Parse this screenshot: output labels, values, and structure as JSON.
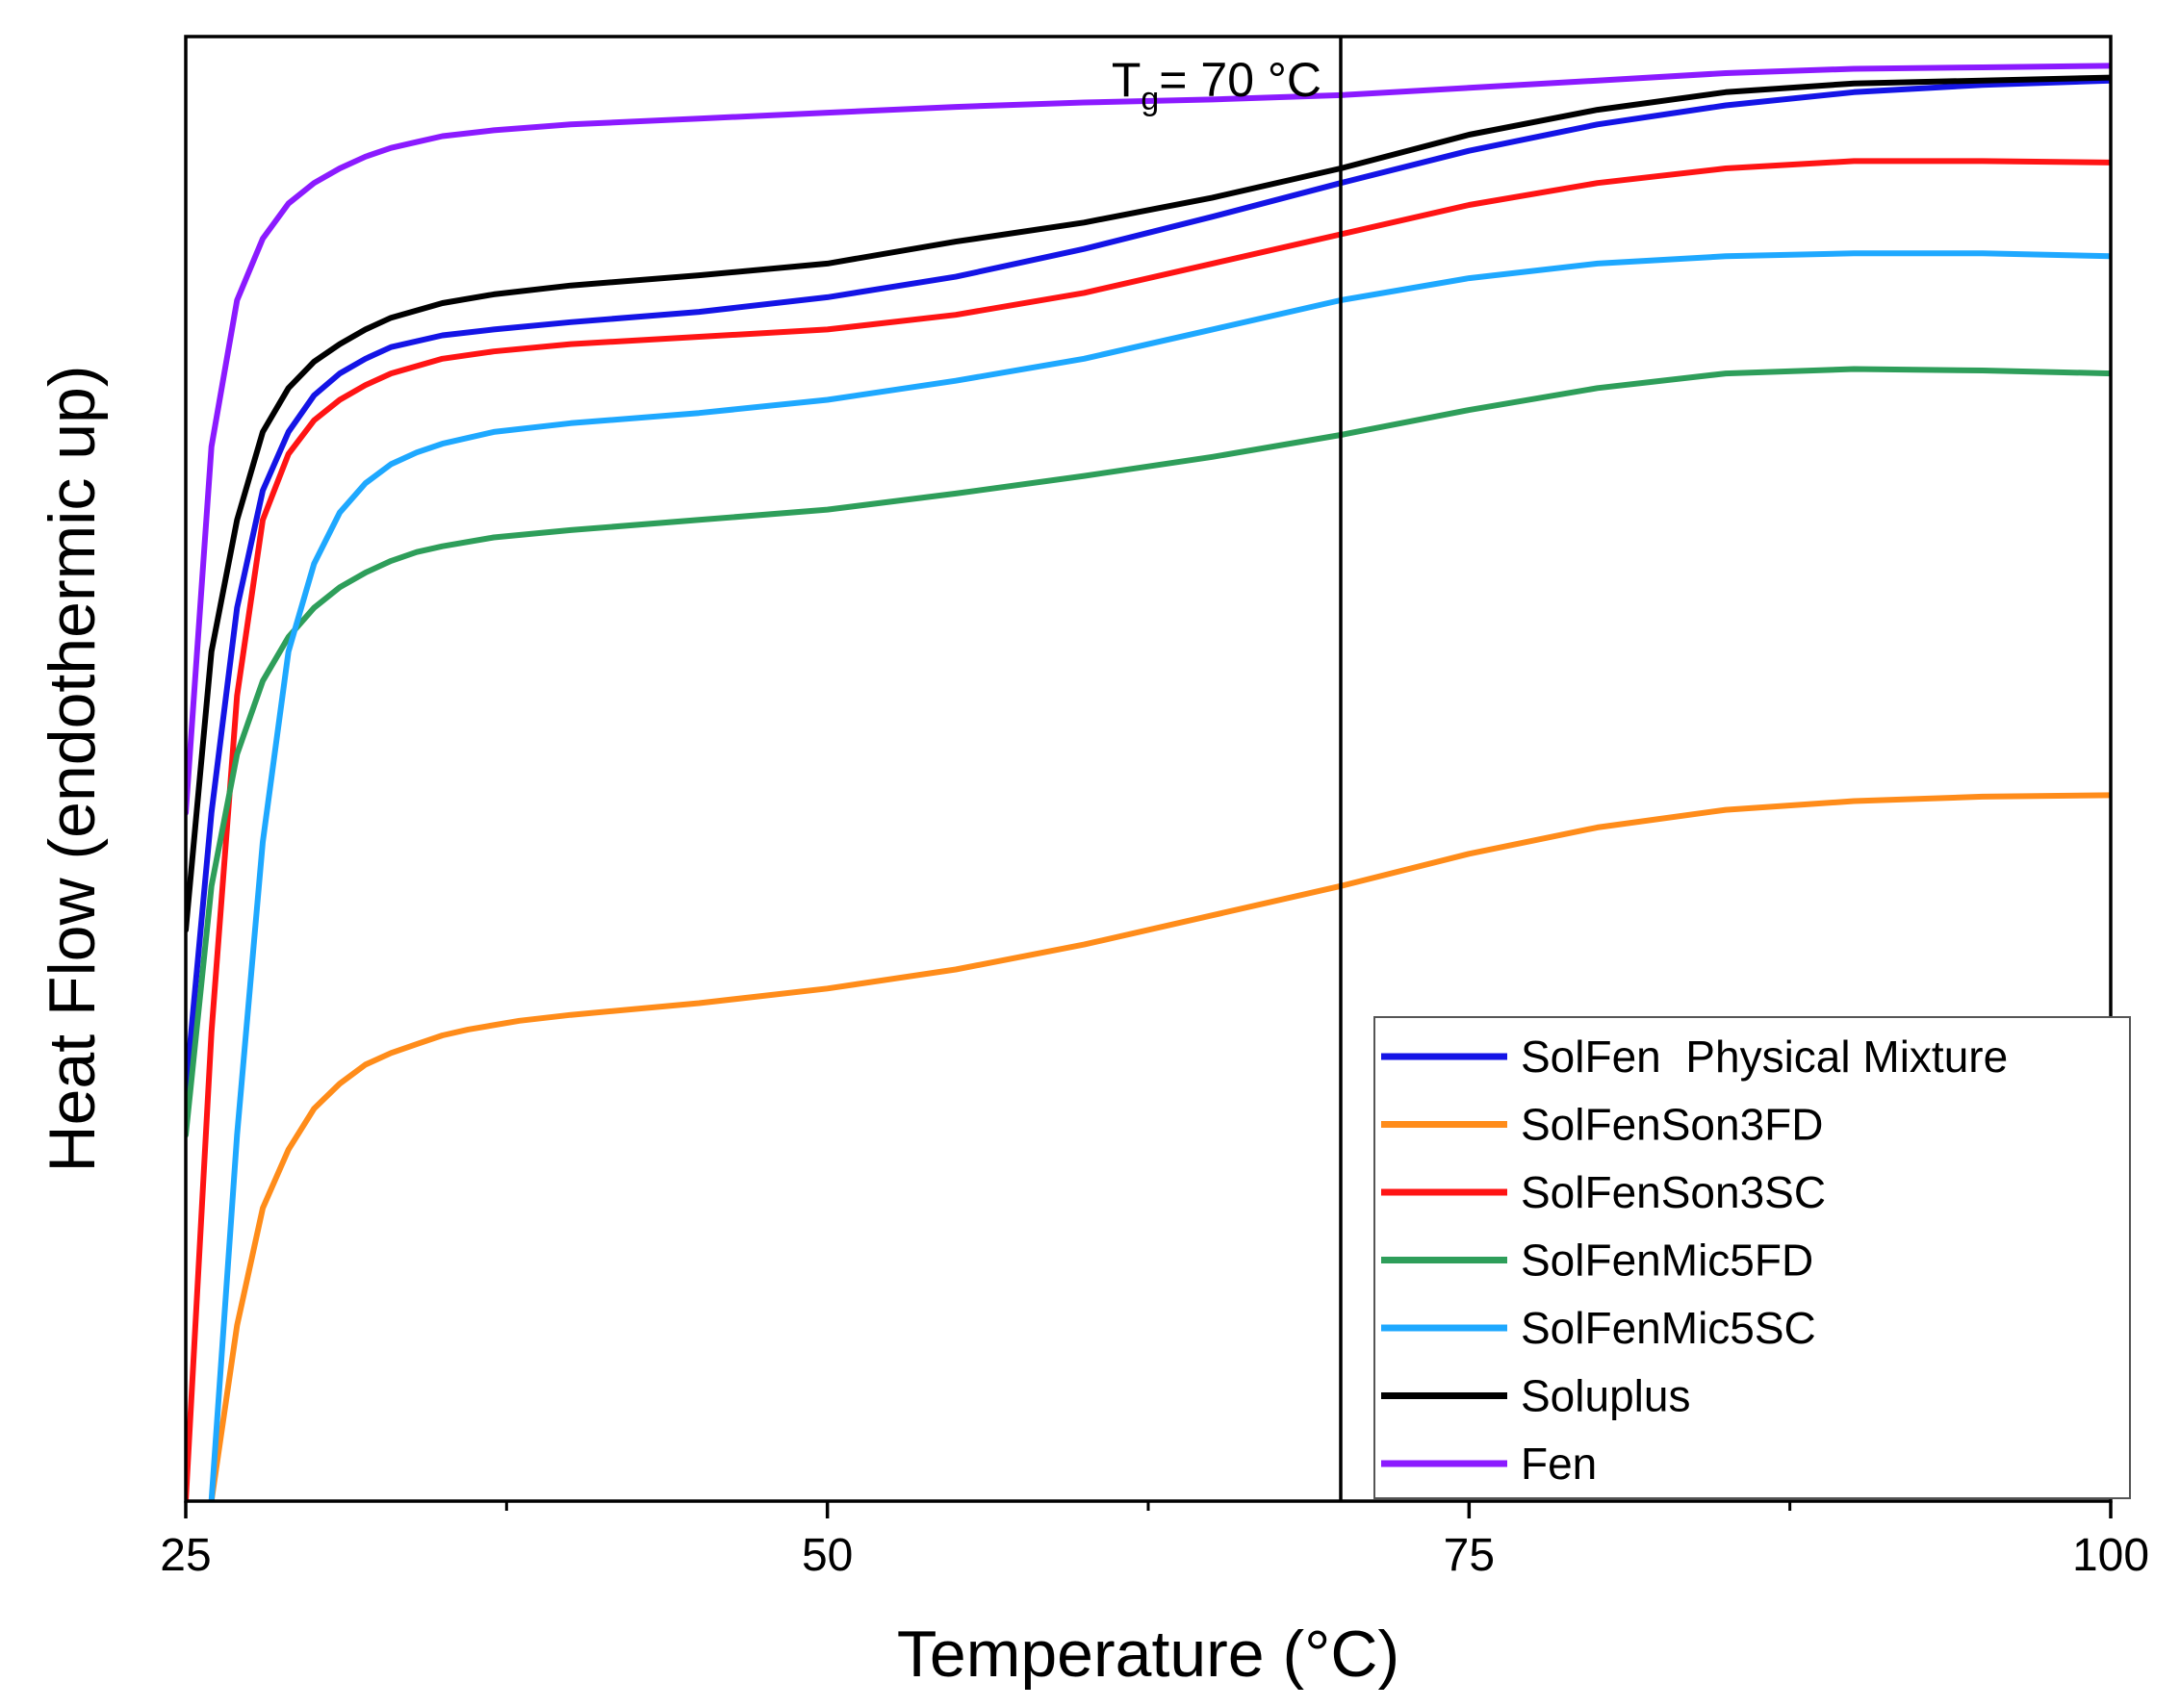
{
  "chart_data": {
    "type": "line",
    "title": "",
    "xlabel": "Temperature (°C)",
    "ylabel": "Heat Flow (endothermic up)",
    "xlim": [
      25,
      100
    ],
    "ylim": [
      0,
      1
    ],
    "xticks": [
      25,
      50,
      75,
      100
    ],
    "x_minor_ticks": [
      37.5,
      62.5,
      87.5
    ],
    "yticks": [],
    "grid": false,
    "legend_position": "bottom-right",
    "annotation": {
      "x": 70,
      "label_main": "T",
      "label_sub": "g",
      "label_rest": "= 70 °C"
    },
    "series": [
      {
        "name": "SolFen  Physical Mixture",
        "color": "#1414e6",
        "x": [
          25,
          26,
          27,
          28,
          29,
          30,
          31,
          32,
          33,
          35,
          37,
          40,
          45,
          50,
          55,
          60,
          65,
          70,
          75,
          80,
          85,
          90,
          95,
          100
        ],
        "y": [
          0.28,
          0.47,
          0.61,
          0.69,
          0.73,
          0.755,
          0.77,
          0.78,
          0.788,
          0.796,
          0.8,
          0.805,
          0.812,
          0.822,
          0.836,
          0.855,
          0.877,
          0.9,
          0.922,
          0.94,
          0.953,
          0.962,
          0.967,
          0.97
        ]
      },
      {
        "name": "SolFenSon3FD",
        "color": "#ff8c1a",
        "x": [
          26,
          27,
          28,
          29,
          30,
          31,
          32,
          33,
          34,
          35,
          36,
          38,
          40,
          45,
          50,
          55,
          60,
          65,
          70,
          75,
          80,
          85,
          90,
          95,
          100
        ],
        "y": [
          0.0,
          0.12,
          0.2,
          0.24,
          0.268,
          0.285,
          0.298,
          0.306,
          0.312,
          0.318,
          0.322,
          0.328,
          0.332,
          0.34,
          0.35,
          0.363,
          0.38,
          0.4,
          0.42,
          0.442,
          0.46,
          0.472,
          0.478,
          0.481,
          0.482
        ]
      },
      {
        "name": "SolFenSon3SC",
        "color": "#ff1414",
        "x": [
          25,
          26,
          27,
          28,
          29,
          30,
          31,
          32,
          33,
          35,
          37,
          40,
          45,
          50,
          55,
          60,
          65,
          70,
          75,
          80,
          85,
          90,
          95,
          100
        ],
        "y": [
          0.0,
          0.32,
          0.55,
          0.67,
          0.715,
          0.738,
          0.752,
          0.762,
          0.77,
          0.78,
          0.785,
          0.79,
          0.795,
          0.8,
          0.81,
          0.825,
          0.845,
          0.865,
          0.885,
          0.9,
          0.91,
          0.915,
          0.915,
          0.914
        ]
      },
      {
        "name": "SolFenMic5FD",
        "color": "#2e9e5a",
        "x": [
          25,
          26,
          27,
          28,
          29,
          30,
          31,
          32,
          33,
          34,
          35,
          37,
          40,
          45,
          50,
          55,
          60,
          65,
          70,
          75,
          80,
          85,
          90,
          95,
          100
        ],
        "y": [
          0.25,
          0.42,
          0.51,
          0.56,
          0.59,
          0.61,
          0.624,
          0.634,
          0.642,
          0.648,
          0.652,
          0.658,
          0.663,
          0.67,
          0.677,
          0.688,
          0.7,
          0.713,
          0.728,
          0.745,
          0.76,
          0.77,
          0.773,
          0.772,
          0.77
        ]
      },
      {
        "name": "SolFenMic5SC",
        "color": "#1ea8ff",
        "x": [
          26,
          27,
          28,
          29,
          30,
          31,
          32,
          33,
          34,
          35,
          37,
          40,
          45,
          50,
          55,
          60,
          65,
          70,
          75,
          80,
          85,
          90,
          95,
          100
        ],
        "y": [
          0.0,
          0.25,
          0.45,
          0.58,
          0.64,
          0.675,
          0.695,
          0.708,
          0.716,
          0.722,
          0.73,
          0.736,
          0.743,
          0.752,
          0.765,
          0.78,
          0.8,
          0.82,
          0.835,
          0.845,
          0.85,
          0.852,
          0.852,
          0.85
        ]
      },
      {
        "name": "Soluplus",
        "color": "#000000",
        "x": [
          25,
          26,
          27,
          28,
          29,
          30,
          31,
          32,
          33,
          35,
          37,
          40,
          45,
          50,
          55,
          60,
          65,
          70,
          75,
          80,
          85,
          90,
          95,
          100
        ],
        "y": [
          0.39,
          0.58,
          0.67,
          0.73,
          0.76,
          0.778,
          0.79,
          0.8,
          0.808,
          0.818,
          0.824,
          0.83,
          0.837,
          0.845,
          0.86,
          0.873,
          0.89,
          0.91,
          0.933,
          0.95,
          0.962,
          0.968,
          0.97,
          0.972
        ]
      },
      {
        "name": "Fen",
        "color": "#8b1aff",
        "x": [
          25,
          26,
          27,
          28,
          29,
          30,
          31,
          32,
          33,
          34,
          35,
          37,
          40,
          45,
          50,
          55,
          60,
          65,
          70,
          75,
          80,
          85,
          90,
          95,
          100
        ],
        "y": [
          0.47,
          0.72,
          0.82,
          0.862,
          0.886,
          0.9,
          0.91,
          0.918,
          0.924,
          0.928,
          0.932,
          0.936,
          0.94,
          0.944,
          0.948,
          0.952,
          0.955,
          0.957,
          0.96,
          0.965,
          0.97,
          0.975,
          0.978,
          0.979,
          0.98
        ]
      }
    ]
  }
}
